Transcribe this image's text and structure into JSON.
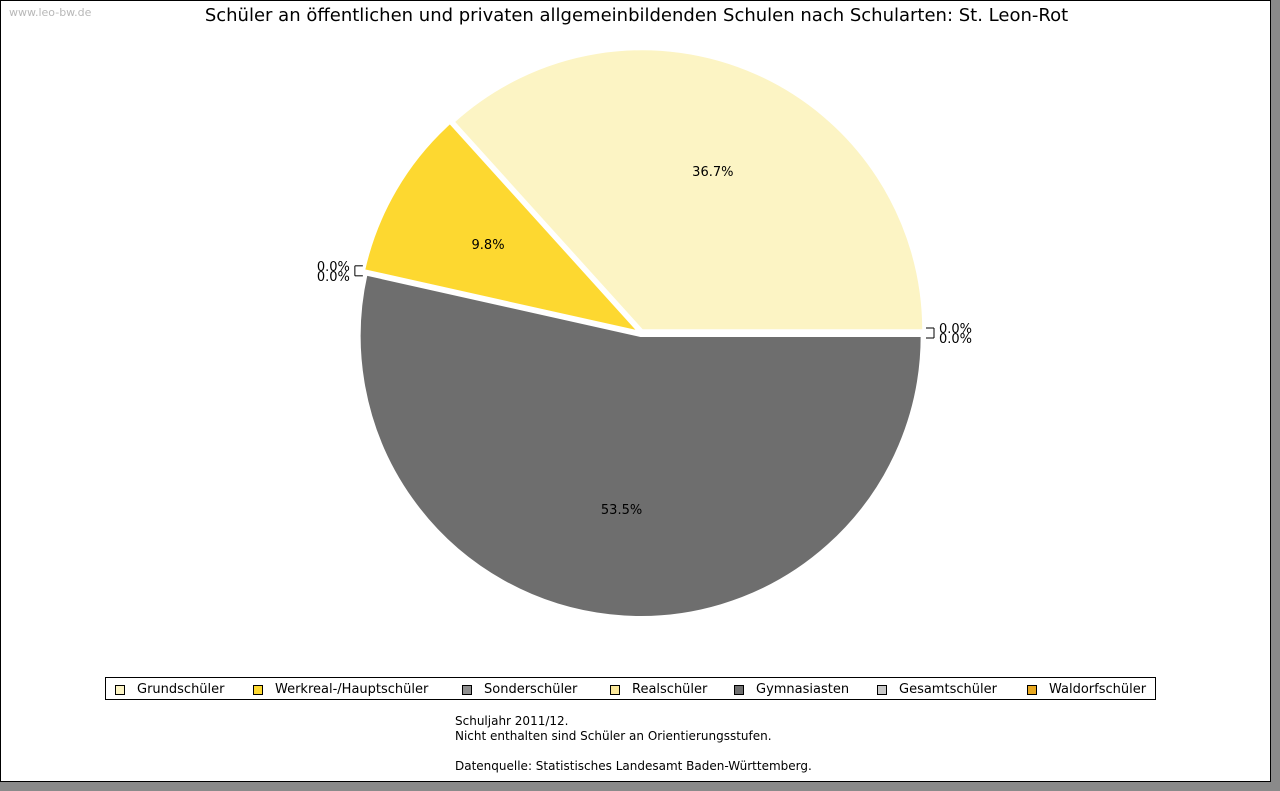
{
  "watermark": "www.leo-bw.de",
  "chart_data": {
    "type": "pie",
    "title": "Schüler an öffentlichen und privaten allgemeinbildenden Schulen nach Schularten: St. Leon-Rot",
    "start_angle_deg": 0,
    "direction": "counterclockwise",
    "slices": [
      {
        "name": "Grundschüler",
        "value": 36.7,
        "label": "36.7%",
        "color": "#fcf4c4"
      },
      {
        "name": "Werkreal-/Hauptschüler",
        "value": 9.8,
        "label": "9.8%",
        "color": "#fdd830"
      },
      {
        "name": "Sonderschüler",
        "value": 0.0,
        "label": "0.0%",
        "color": "#8e8e8e"
      },
      {
        "name": "Realschüler",
        "value": 0.0,
        "label": "0.0%",
        "color": "#fbe89a"
      },
      {
        "name": "Gymnasiasten",
        "value": 53.5,
        "label": "53.5%",
        "color": "#6e6e6e"
      },
      {
        "name": "Gesamtschüler",
        "value": 0.0,
        "label": "0.0%",
        "color": "#c8c8c8"
      },
      {
        "name": "Waldorfschüler",
        "value": 0.0,
        "label": "0.0%",
        "color": "#e8a820"
      }
    ],
    "legend_position": "bottom"
  },
  "footnote": {
    "line1": "Schuljahr 2011/12.",
    "line2": "Nicht enthalten sind Schüler an Orientierungsstufen.",
    "source": "Datenquelle: Statistisches Landesamt Baden-Württemberg."
  }
}
